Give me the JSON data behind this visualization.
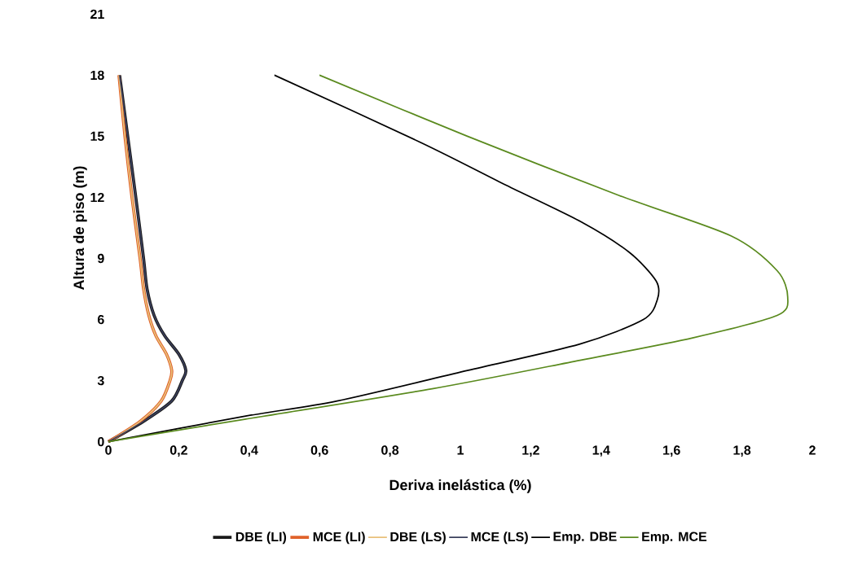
{
  "chart_data": {
    "type": "line",
    "xlabel": "Deriva inelástica (%)",
    "ylabel": "Altura de piso (m)",
    "xlim": [
      0,
      2
    ],
    "ylim": [
      0,
      21
    ],
    "xticks": [
      0,
      {
        "value": 0.2,
        "label": "0,2"
      },
      {
        "value": 0.4,
        "label": "0,4"
      },
      {
        "value": 0.6,
        "label": "0,6"
      },
      {
        "value": 0.8,
        "label": "0,8"
      },
      1,
      {
        "value": 1.2,
        "label": "1,2"
      },
      {
        "value": 1.4,
        "label": "1,4"
      },
      {
        "value": 1.6,
        "label": "1,6"
      },
      {
        "value": 1.8,
        "label": "1,8"
      },
      2
    ],
    "yticks": [
      0,
      3,
      6,
      9,
      12,
      15,
      18,
      21
    ],
    "legend": "bottom",
    "grid": false,
    "marker": "none",
    "line_style": "solid",
    "series": [
      {
        "name": "DBE (LI)",
        "color": "#1a1a1a",
        "x": [
          0,
          0.1,
          0.18,
          0.21,
          0.22,
          0.2,
          0.16,
          0.13,
          0.11,
          0.1,
          0.078,
          0.055,
          0.032
        ],
        "values": [
          0,
          1,
          2,
          3,
          3.5,
          4.3,
          5.2,
          6.2,
          7.5,
          9,
          12,
          15,
          18
        ]
      },
      {
        "name": "MCE (LI)",
        "color": "#e0622a",
        "x": [
          0,
          0.09,
          0.15,
          0.175,
          0.18,
          0.165,
          0.135,
          0.115,
          0.1,
          0.09,
          0.067,
          0.047,
          0.03
        ],
        "values": [
          0,
          1,
          2,
          3,
          3.5,
          4.3,
          5.2,
          6.2,
          7.5,
          9,
          12,
          15,
          18
        ]
      },
      {
        "name": "DBE (LS)",
        "color": "#e8c07a",
        "x": [
          0,
          0.09,
          0.15,
          0.175,
          0.18,
          0.165,
          0.135,
          0.115,
          0.1,
          0.09,
          0.067,
          0.047,
          0.03
        ],
        "values": [
          0,
          1,
          2,
          3,
          3.5,
          4.3,
          5.2,
          6.2,
          7.5,
          9,
          12,
          15,
          18
        ]
      },
      {
        "name": "MCE (LS)",
        "color": "#3a3f5c",
        "x": [
          0,
          0.1,
          0.18,
          0.21,
          0.22,
          0.2,
          0.16,
          0.13,
          0.11,
          0.1,
          0.078,
          0.055,
          0.032
        ],
        "values": [
          0,
          1,
          2,
          3,
          3.5,
          4.3,
          5.2,
          6.2,
          7.5,
          9,
          12,
          15,
          18
        ]
      },
      {
        "name": "Emp. DBE",
        "color": "#000000",
        "x": [
          0,
          0.387,
          0.65,
          1.02,
          1.34,
          1.52,
          1.56,
          1.556,
          1.48,
          1.343,
          1.13,
          0.887,
          0.472
        ],
        "values": [
          0,
          1.25,
          2.0,
          3.5,
          4.8,
          6.0,
          7.0,
          7.9,
          9.3,
          10.8,
          12.6,
          14.7,
          18
        ]
      },
      {
        "name": "Emp. MCE",
        "color": "#5a8a1e",
        "x": [
          0,
          0.387,
          0.92,
          1.34,
          1.66,
          1.9,
          1.93,
          1.9,
          1.77,
          1.45,
          1.02,
          0.6
        ],
        "values": [
          0,
          1.1,
          2.6,
          4.0,
          5.1,
          6.2,
          7.1,
          8.4,
          10.1,
          12.1,
          15.0,
          18
        ]
      }
    ]
  }
}
